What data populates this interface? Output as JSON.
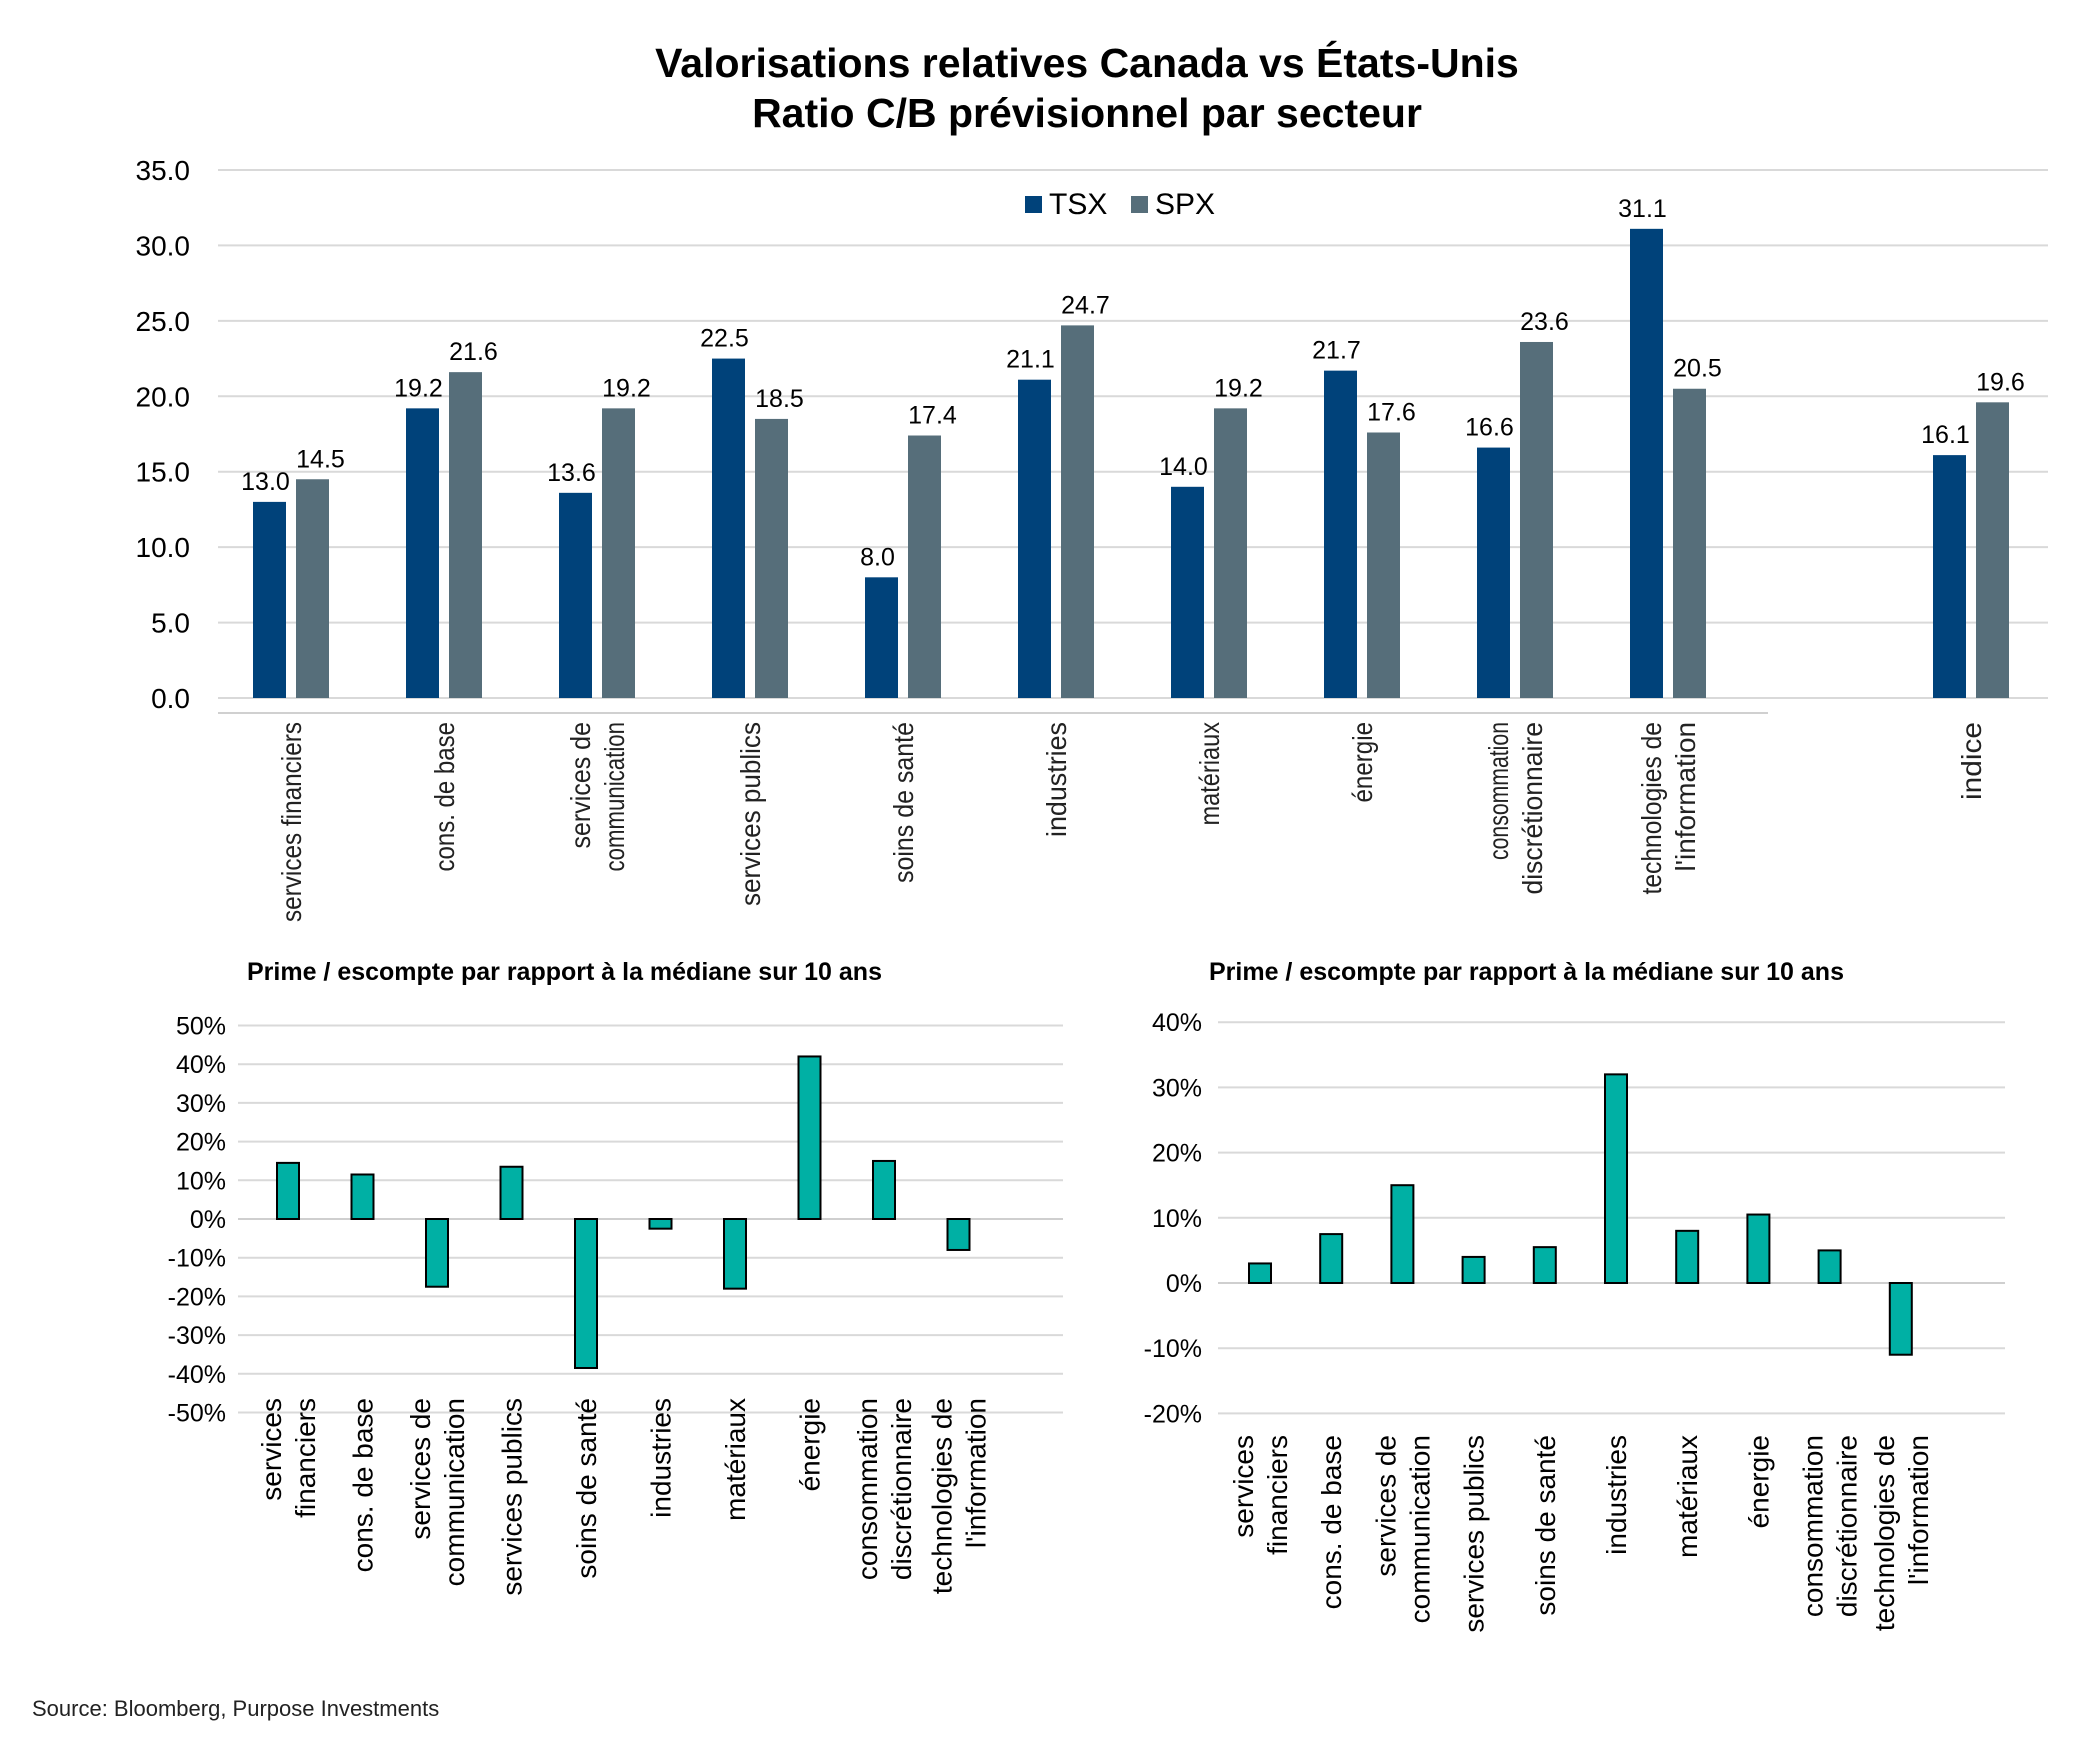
{
  "main_title_line1": "Valorisations relatives Canada vs États-Unis",
  "main_title_line2": "Ratio C/B prévisionnel par secteur",
  "source": "Source: Bloomberg, Purpose Investments",
  "colors": {
    "tsx": "#00427a",
    "spx": "#566e7a",
    "teal": "#00b0a4",
    "grid": "#d9d9d9"
  },
  "chart_data": [
    {
      "type": "bar",
      "title": "Valorisations relatives Canada vs États-Unis — Ratio C/B prévisionnel par secteur",
      "categories": [
        [
          "services financiers"
        ],
        [
          "cons. de base"
        ],
        [
          "services de",
          "communication"
        ],
        [
          "services publics"
        ],
        [
          "soins de santé"
        ],
        [
          "industries"
        ],
        [
          "matériaux"
        ],
        [
          "énergie"
        ],
        [
          "consommation",
          "discrétionnaire"
        ],
        [
          "technologies de",
          "l'information"
        ],
        [
          "indice"
        ]
      ],
      "series": [
        {
          "name": "TSX",
          "values": [
            13.0,
            19.2,
            13.6,
            22.5,
            8.0,
            21.1,
            14.0,
            21.7,
            16.6,
            31.1,
            16.1
          ]
        },
        {
          "name": "SPX",
          "values": [
            14.5,
            21.6,
            19.2,
            18.5,
            17.4,
            24.7,
            19.2,
            17.6,
            23.6,
            20.5,
            19.6
          ]
        }
      ],
      "yticks": [
        "0.0",
        "5.0",
        "10.0",
        "15.0",
        "20.0",
        "25.0",
        "30.0",
        "35.0"
      ],
      "ylim": [
        0,
        35
      ],
      "legend": "top-center"
    },
    {
      "type": "bar",
      "title": "Prime / escompte par rapport à la médiane sur 10 ans",
      "categories": [
        [
          "services",
          "financiers"
        ],
        [
          "cons. de base"
        ],
        [
          "services de",
          "communication"
        ],
        [
          "services publics"
        ],
        [
          "soins de santé"
        ],
        [
          "industries"
        ],
        [
          "matériaux"
        ],
        [
          "énergie"
        ],
        [
          "consommation",
          "discrétionnaire"
        ],
        [
          "technologies de",
          "l'information"
        ]
      ],
      "values": [
        14.5,
        11.5,
        -17.5,
        13.5,
        -38.5,
        -2.5,
        -18.0,
        42.0,
        15.0,
        -8.0
      ],
      "yticks": [
        "-50%",
        "-40%",
        "-30%",
        "-20%",
        "-10%",
        "0%",
        "10%",
        "20%",
        "30%",
        "40%",
        "50%"
      ],
      "ylim": [
        -50,
        50
      ]
    },
    {
      "type": "bar",
      "title": "Prime / escompte par rapport à la médiane sur 10 ans",
      "categories": [
        [
          "services",
          "financiers"
        ],
        [
          "cons. de base"
        ],
        [
          "services de",
          "communication"
        ],
        [
          "services publics"
        ],
        [
          "soins de santé"
        ],
        [
          "industries"
        ],
        [
          "matériaux"
        ],
        [
          "énergie"
        ],
        [
          "consommation",
          "discrétionnaire"
        ],
        [
          "technologies de",
          "l'information"
        ]
      ],
      "values": [
        3.0,
        7.5,
        15.0,
        4.0,
        5.5,
        32.0,
        8.0,
        10.5,
        5.0,
        -11.0
      ],
      "yticks": [
        "-20%",
        "-10%",
        "0%",
        "10%",
        "20%",
        "30%",
        "40%"
      ],
      "ylim": [
        -20,
        40
      ]
    }
  ]
}
